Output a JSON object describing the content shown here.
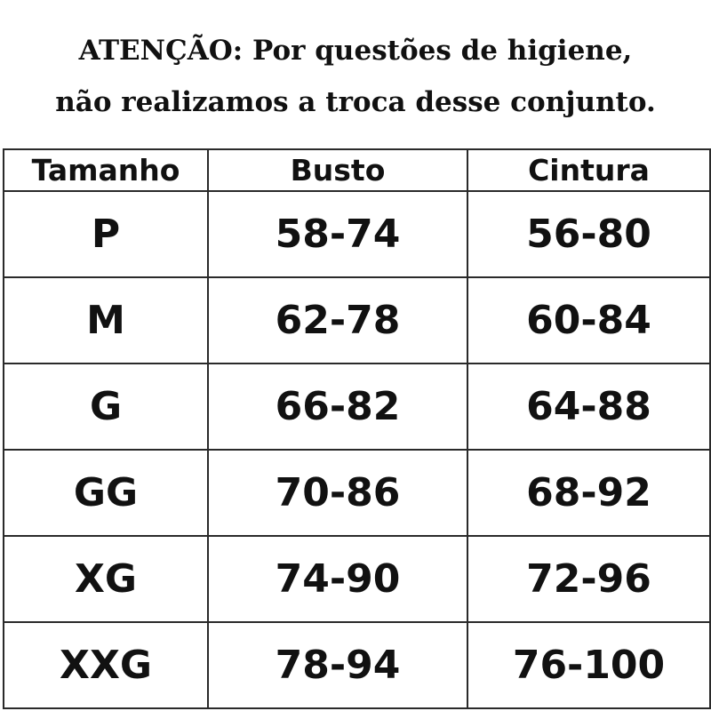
{
  "notice": {
    "line1": "ATENÇÃO: Por questões de higiene,",
    "line2": "não realizamos a troca desse conjunto."
  },
  "table": {
    "headers": [
      "Tamanho",
      "Busto",
      "Cintura"
    ],
    "rows": [
      [
        "P",
        "58-74",
        "56-80"
      ],
      [
        "M",
        "62-78",
        "60-84"
      ],
      [
        "G",
        "66-82",
        "64-88"
      ],
      [
        "GG",
        "70-86",
        "68-92"
      ],
      [
        "XG",
        "74-90",
        "72-96"
      ],
      [
        "XXG",
        "78-94",
        "76-100"
      ]
    ]
  }
}
